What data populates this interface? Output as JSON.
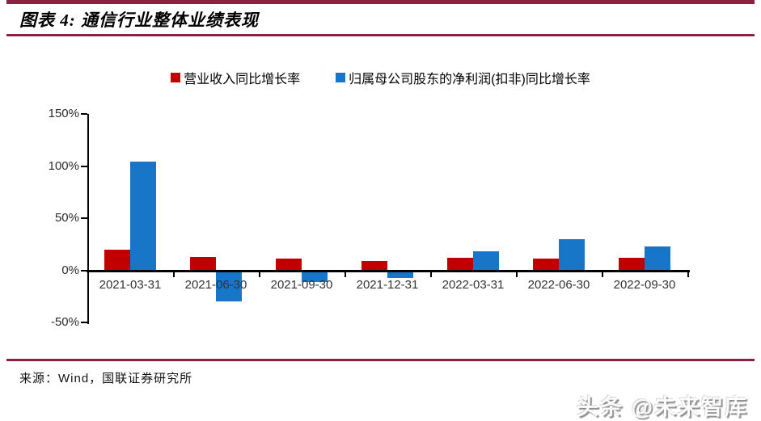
{
  "header": {
    "title": "图表 4: 通信行业整体业绩表现",
    "accent_color": "#8c2040"
  },
  "source": {
    "text": "来源：Wind，国联证券研究所"
  },
  "watermark": {
    "text": "头条 @未来智库"
  },
  "chart_data": {
    "type": "bar",
    "title": "通信行业整体业绩表现",
    "categories": [
      "2021-03-31",
      "2021-06-30",
      "2021-09-30",
      "2021-12-31",
      "2022-03-31",
      "2022-06-30",
      "2022-09-30"
    ],
    "series": [
      {
        "id": "revenue-yoy",
        "name": "营业收入同比增长率",
        "color": "#c00000",
        "values": [
          20,
          13,
          11,
          9,
          12,
          11,
          12
        ]
      },
      {
        "id": "net-profit-yoy",
        "name": "归属母公司股东的净利润(扣非)同比增长率",
        "color": "#1776c8",
        "values": [
          104,
          -28,
          -10,
          -6,
          18,
          30,
          23
        ]
      }
    ],
    "xlabel": "",
    "ylabel": "",
    "ylim": [
      -50,
      150
    ],
    "ytick_values": [
      150,
      100,
      50,
      0,
      -50
    ],
    "ytick_labels": [
      "150%",
      "100%",
      "50%",
      "0%",
      "-50%"
    ],
    "grid": false,
    "legend_position": "top"
  }
}
